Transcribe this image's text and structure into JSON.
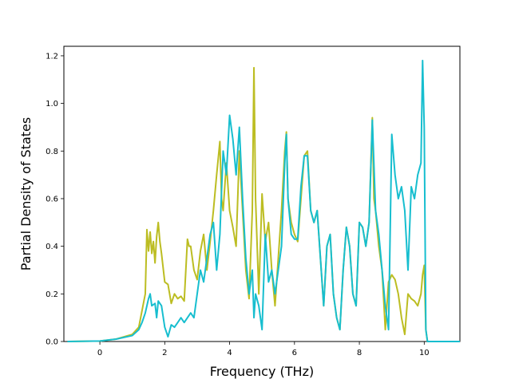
{
  "chart_data": {
    "type": "line",
    "xlabel": "Frequency (THz)",
    "ylabel": "Partial Density of States",
    "xlim": [
      -1.11,
      11.1
    ],
    "ylim": [
      0,
      1.24
    ],
    "xticks": [
      0,
      2,
      4,
      6,
      8,
      10
    ],
    "yticks": [
      0.0,
      0.2,
      0.4,
      0.6,
      0.8,
      1.0,
      1.2
    ],
    "grid": false,
    "series": [
      {
        "color": "#bcbd22",
        "x": [
          -1.0,
          0.0,
          0.5,
          1.0,
          1.2,
          1.4,
          1.45,
          1.5,
          1.55,
          1.6,
          1.65,
          1.7,
          1.75,
          1.8,
          1.85,
          1.9,
          2.0,
          2.1,
          2.2,
          2.3,
          2.4,
          2.5,
          2.6,
          2.7,
          2.75,
          2.8,
          2.9,
          3.0,
          3.1,
          3.2,
          3.3,
          3.4,
          3.5,
          3.6,
          3.7,
          3.75,
          3.8,
          3.9,
          4.0,
          4.1,
          4.2,
          4.3,
          4.4,
          4.5,
          4.6,
          4.7,
          4.75,
          4.8,
          4.9,
          5.0,
          5.1,
          5.2,
          5.3,
          5.4,
          5.5,
          5.6,
          5.7,
          5.75,
          5.8,
          5.9,
          6.0,
          6.1,
          6.2,
          6.3,
          6.4,
          6.5,
          6.6,
          6.7,
          6.8,
          6.9,
          7.0,
          7.1,
          7.2,
          7.3,
          7.4,
          7.5,
          7.6,
          7.7,
          7.8,
          7.9,
          8.0,
          8.1,
          8.2,
          8.3,
          8.4,
          8.45,
          8.5,
          8.6,
          8.7,
          8.8,
          8.9,
          9.0,
          9.1,
          9.2,
          9.3,
          9.4,
          9.5,
          9.6,
          9.7,
          9.8,
          9.9,
          9.95,
          10.0,
          10.05,
          10.1,
          10.2,
          11.1
        ],
        "y": [
          0.0,
          0.002,
          0.01,
          0.03,
          0.06,
          0.2,
          0.47,
          0.38,
          0.46,
          0.37,
          0.42,
          0.33,
          0.44,
          0.5,
          0.42,
          0.37,
          0.25,
          0.24,
          0.16,
          0.2,
          0.18,
          0.19,
          0.17,
          0.43,
          0.4,
          0.4,
          0.3,
          0.26,
          0.38,
          0.45,
          0.3,
          0.42,
          0.55,
          0.7,
          0.84,
          0.6,
          0.55,
          0.75,
          0.55,
          0.48,
          0.4,
          0.8,
          0.55,
          0.3,
          0.18,
          0.55,
          1.15,
          0.6,
          0.2,
          0.62,
          0.42,
          0.5,
          0.3,
          0.15,
          0.35,
          0.55,
          0.8,
          0.88,
          0.6,
          0.5,
          0.45,
          0.42,
          0.6,
          0.78,
          0.8,
          0.55,
          0.5,
          0.55,
          0.35,
          0.15,
          0.4,
          0.45,
          0.2,
          0.1,
          0.05,
          0.3,
          0.48,
          0.4,
          0.2,
          0.15,
          0.5,
          0.48,
          0.4,
          0.5,
          0.94,
          0.6,
          0.55,
          0.4,
          0.3,
          0.05,
          0.25,
          0.28,
          0.26,
          0.2,
          0.1,
          0.03,
          0.2,
          0.18,
          0.17,
          0.15,
          0.2,
          0.28,
          0.32,
          0.05,
          0.0,
          0.0,
          0.0
        ]
      },
      {
        "color": "#17becf",
        "x": [
          -1.0,
          0.0,
          0.5,
          1.0,
          1.2,
          1.3,
          1.4,
          1.5,
          1.55,
          1.6,
          1.7,
          1.75,
          1.8,
          1.9,
          2.0,
          2.1,
          2.2,
          2.3,
          2.4,
          2.5,
          2.6,
          2.7,
          2.8,
          2.9,
          3.0,
          3.1,
          3.2,
          3.3,
          3.4,
          3.5,
          3.6,
          3.7,
          3.8,
          3.9,
          4.0,
          4.1,
          4.2,
          4.3,
          4.4,
          4.5,
          4.6,
          4.7,
          4.75,
          4.8,
          4.9,
          5.0,
          5.1,
          5.2,
          5.3,
          5.4,
          5.5,
          5.6,
          5.7,
          5.75,
          5.8,
          5.9,
          6.0,
          6.1,
          6.2,
          6.3,
          6.4,
          6.5,
          6.6,
          6.7,
          6.8,
          6.9,
          7.0,
          7.1,
          7.2,
          7.3,
          7.4,
          7.5,
          7.6,
          7.7,
          7.8,
          7.9,
          8.0,
          8.1,
          8.2,
          8.3,
          8.4,
          8.5,
          8.6,
          8.7,
          8.8,
          8.9,
          9.0,
          9.1,
          9.2,
          9.3,
          9.4,
          9.5,
          9.6,
          9.7,
          9.8,
          9.9,
          9.95,
          10.0,
          10.05,
          10.1,
          10.2,
          11.1
        ],
        "y": [
          0.0,
          0.002,
          0.01,
          0.025,
          0.05,
          0.08,
          0.12,
          0.18,
          0.2,
          0.15,
          0.16,
          0.1,
          0.17,
          0.15,
          0.06,
          0.02,
          0.07,
          0.06,
          0.08,
          0.1,
          0.08,
          0.1,
          0.12,
          0.1,
          0.2,
          0.3,
          0.25,
          0.35,
          0.45,
          0.5,
          0.3,
          0.45,
          0.8,
          0.7,
          0.95,
          0.85,
          0.7,
          0.9,
          0.6,
          0.35,
          0.2,
          0.3,
          0.1,
          0.2,
          0.15,
          0.05,
          0.45,
          0.25,
          0.3,
          0.2,
          0.3,
          0.4,
          0.75,
          0.87,
          0.6,
          0.45,
          0.43,
          0.43,
          0.65,
          0.78,
          0.78,
          0.55,
          0.5,
          0.55,
          0.35,
          0.15,
          0.4,
          0.45,
          0.2,
          0.1,
          0.05,
          0.3,
          0.48,
          0.4,
          0.2,
          0.15,
          0.5,
          0.48,
          0.4,
          0.5,
          0.93,
          0.55,
          0.45,
          0.3,
          0.15,
          0.05,
          0.87,
          0.7,
          0.6,
          0.65,
          0.55,
          0.3,
          0.65,
          0.6,
          0.7,
          0.75,
          1.18,
          0.9,
          0.05,
          0.0,
          0.0,
          0.0
        ]
      }
    ]
  }
}
